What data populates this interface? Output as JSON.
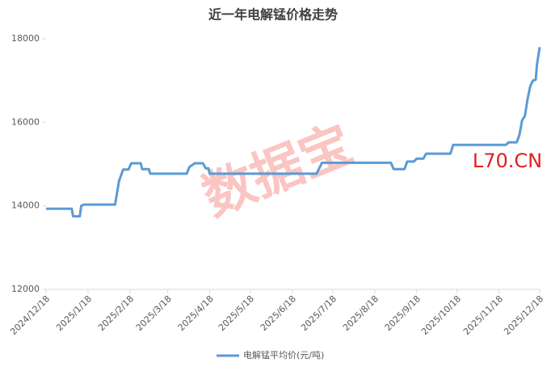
{
  "chart_data": {
    "type": "line",
    "title": "近一年电解锰价格走势",
    "x": [
      "2024/12/18",
      "2025/1/6",
      "2025/1/7",
      "2025/1/12",
      "2025/1/13",
      "2025/1/15",
      "2025/2/7",
      "2025/2/10",
      "2025/2/13",
      "2025/2/17",
      "2025/2/19",
      "2025/2/26",
      "2025/2/27",
      "2025/3/4",
      "2025/3/5",
      "2025/4/1",
      "2025/4/3",
      "2025/4/7",
      "2025/4/13",
      "2025/4/15",
      "2025/4/17",
      "2025/4/18",
      "2025/7/6",
      "2025/7/8",
      "2025/7/10",
      "2025/8/30",
      "2025/9/1",
      "2025/9/9",
      "2025/9/11",
      "2025/9/16",
      "2025/9/18",
      "2025/9/23",
      "2025/9/25",
      "2025/10/13",
      "2025/10/15",
      "2025/11/23",
      "2025/11/25",
      "2025/12/1",
      "2025/12/3",
      "2025/12/5",
      "2025/12/7",
      "2025/12/9",
      "2025/12/11",
      "2025/12/13",
      "2025/12/15",
      "2025/12/16",
      "2025/12/18"
    ],
    "series": [
      {
        "name": "电解锰平均价(元/吨)",
        "color": "#5b9bd5",
        "values": [
          13930,
          13930,
          13750,
          13750,
          14000,
          14030,
          14030,
          14600,
          14870,
          14870,
          15020,
          15020,
          14880,
          14880,
          14770,
          14770,
          14930,
          15020,
          15020,
          14900,
          14900,
          14770,
          14770,
          14900,
          15030,
          15030,
          14880,
          14880,
          15060,
          15060,
          15130,
          15130,
          15250,
          15250,
          15460,
          15460,
          15520,
          15520,
          15700,
          16050,
          16150,
          16550,
          16870,
          17000,
          17020,
          17400,
          17800
        ]
      }
    ],
    "xlim": [
      "2024/12/18",
      "2025/12/18"
    ],
    "xticks": [
      "2024/12/18",
      "2025/1/18",
      "2025/2/18",
      "2025/3/18",
      "2025/4/18",
      "2025/5/18",
      "2025/6/18",
      "2025/7/18",
      "2025/8/18",
      "2025/9/18",
      "2025/10/18",
      "2025/11/18",
      "2025/12/18"
    ],
    "ylim": [
      12000,
      18000
    ],
    "yticks": [
      12000,
      14000,
      16000,
      18000
    ],
    "grid": false,
    "legend": "bottom",
    "watermarks": [
      "数据宝",
      "L70.CN"
    ]
  }
}
